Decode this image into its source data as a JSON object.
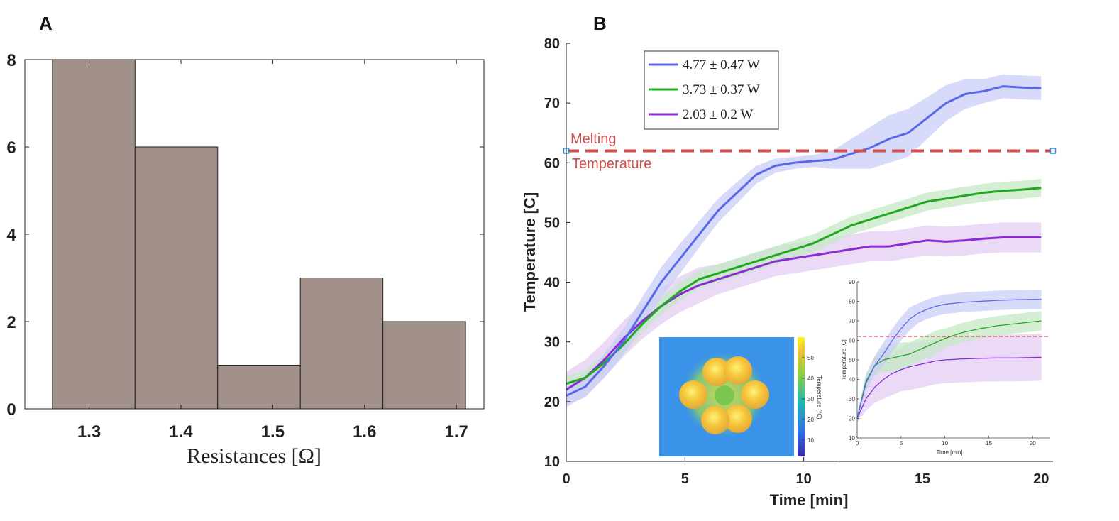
{
  "panels": {
    "a_label": "A",
    "b_label": "B"
  },
  "colors": {
    "bar": "#a2918a",
    "s1": "#5868e8",
    "s1_band": "#c9cdf6",
    "s2": "#22a722",
    "s2_band": "#c4e8c4",
    "s3": "#8a2bd6",
    "s3_band": "#e3cdf3",
    "melt": "#d0504f"
  },
  "chart_data": [
    {
      "type": "bar",
      "title": "",
      "xlabel": "Resistances [Ω]",
      "ylabel": "",
      "bin_edges": [
        1.26,
        1.35,
        1.44,
        1.53,
        1.62,
        1.71
      ],
      "counts": [
        8,
        6,
        1,
        3,
        2
      ],
      "xlim": [
        1.23,
        1.73
      ],
      "ylim": [
        0,
        8
      ],
      "xticks": [
        1.3,
        1.4,
        1.5,
        1.6,
        1.7
      ],
      "xtick_labels": [
        "1.3",
        "1.4",
        "1.5",
        "1.6",
        "1.7"
      ],
      "yticks": [
        0,
        2,
        4,
        6,
        8
      ],
      "ytick_labels": [
        "0",
        "2",
        "4",
        "6",
        "8"
      ]
    },
    {
      "type": "line",
      "title": "",
      "xlabel": "Time [min]",
      "ylabel": "Temperature [C]",
      "xlim": [
        0,
        20.5
      ],
      "ylim": [
        10,
        80
      ],
      "xticks": [
        0,
        5,
        10,
        15,
        20
      ],
      "xtick_labels": [
        "0",
        "5",
        "10",
        "15",
        "20"
      ],
      "yticks": [
        10,
        20,
        30,
        40,
        50,
        60,
        70,
        80
      ],
      "ytick_labels": [
        "10",
        "20",
        "30",
        "40",
        "50",
        "60",
        "70",
        "80"
      ],
      "legend_position": "top-left",
      "melting_temperature": 62,
      "annotation_top": "Melting",
      "annotation_bottom": "Temperature",
      "x": [
        0,
        0.8,
        1.6,
        2.4,
        3.2,
        4,
        4.8,
        5.6,
        6.4,
        7.2,
        8,
        8.8,
        9.6,
        10.4,
        11.2,
        12,
        12.8,
        13.6,
        14.4,
        15.2,
        16,
        16.8,
        17.6,
        18.4,
        19.2,
        20
      ],
      "series": [
        {
          "name": "4.77 ± 0.47 W",
          "values": [
            21,
            22.5,
            26,
            30,
            35,
            40,
            44,
            48,
            52,
            55,
            58,
            59.5,
            60,
            60.3,
            60.5,
            61.5,
            62.5,
            64,
            65,
            67.5,
            70,
            71.5,
            72,
            72.8,
            72.6,
            72.5
          ],
          "band": [
            1.5,
            1.8,
            2,
            2.2,
            2.5,
            2.5,
            2.5,
            2.2,
            2,
            1.8,
            1.5,
            1.2,
            1,
            1,
            1.5,
            2.5,
            3.5,
            4,
            4,
            3.5,
            3,
            2.5,
            2,
            2,
            2,
            2
          ]
        },
        {
          "name": "3.73 ± 0.37 W",
          "values": [
            23,
            24,
            26.5,
            29.5,
            33,
            36,
            38.5,
            40.5,
            41.5,
            42.5,
            43.5,
            44.5,
            45.5,
            46.5,
            48,
            49.5,
            50.5,
            51.5,
            52.5,
            53.5,
            54,
            54.5,
            55,
            55.3,
            55.5,
            55.8
          ],
          "band": [
            1.2,
            1.3,
            1.5,
            1.5,
            1.5,
            1.5,
            1.5,
            1.5,
            1.5,
            1.5,
            1.5,
            1.5,
            1.5,
            1.5,
            1.5,
            1.5,
            1.5,
            1.5,
            1.5,
            1.5,
            1.5,
            1.5,
            1.5,
            1.5,
            1.5,
            1.5
          ]
        },
        {
          "name": "2.03 ± 0.2 W",
          "values": [
            22,
            24,
            27,
            30.5,
            33.5,
            36,
            38,
            39.5,
            40.5,
            41.5,
            42.5,
            43.5,
            44,
            44.5,
            45,
            45.5,
            46,
            46,
            46.5,
            47,
            46.8,
            47,
            47.3,
            47.5,
            47.5,
            47.5
          ],
          "band": [
            3,
            3,
            3,
            3,
            3,
            3,
            3,
            3,
            2.5,
            2.5,
            2.5,
            2.5,
            2.5,
            2.5,
            2.5,
            2.5,
            2.5,
            2.5,
            2.5,
            2.5,
            2.5,
            2.5,
            2.5,
            2.5,
            2.5,
            2.5
          ]
        }
      ],
      "inset_thermal": {
        "colorbar_ticks": [
          "10",
          "20",
          "30",
          "40",
          "50"
        ],
        "colorbar_label": "Temperature (°C)"
      },
      "inset_plot": {
        "type": "line",
        "xlabel": "Time [min]",
        "ylabel": "Temperature [C]",
        "xlim": [
          0,
          22
        ],
        "ylim": [
          10,
          90
        ],
        "xticks": [
          "0",
          "5",
          "10",
          "15",
          "20"
        ],
        "yticks": [
          "10",
          "20",
          "30",
          "40",
          "50",
          "60",
          "70",
          "80",
          "90"
        ],
        "melting_temperature": 62,
        "x": [
          0,
          1,
          2,
          3,
          4,
          5,
          6,
          7,
          8,
          9,
          10,
          12,
          14,
          16,
          18,
          20,
          21
        ],
        "series": [
          {
            "name": "4.77 ± 0.47 W",
            "values": [
              20,
              38,
              47,
              53,
              60,
              66,
              71,
              74,
              76,
              77.5,
              78.5,
              79.5,
              80,
              80.5,
              80.8,
              81,
              81
            ],
            "band": [
              2,
              4,
              5,
              6,
              6,
              6,
              6,
              5,
              5,
              5,
              5,
              5,
              5,
              5,
              5,
              5,
              5
            ]
          },
          {
            "name": "3.73 ± 0.37 W",
            "values": [
              20,
              39,
              47,
              50,
              51,
              52,
              53,
              55,
              57,
              59,
              61,
              64,
              66,
              67.5,
              68.5,
              69.5,
              70
            ],
            "band": [
              2,
              4,
              5,
              6,
              7,
              7,
              6,
              6,
              6,
              6,
              5,
              5,
              5,
              5,
              5,
              5,
              5
            ]
          },
          {
            "name": "2.03 ± 0.2 W",
            "values": [
              20,
              30,
              36,
              40,
              43,
              45,
              46.5,
              47.5,
              48.5,
              49.5,
              50,
              50.5,
              50.8,
              51,
              51,
              51.2,
              51.3
            ],
            "band": [
              2,
              6,
              8,
              10,
              11,
              11,
              12,
              12,
              12,
              12,
              12,
              12,
              12,
              12,
              12,
              12,
              12
            ]
          }
        ]
      }
    }
  ]
}
